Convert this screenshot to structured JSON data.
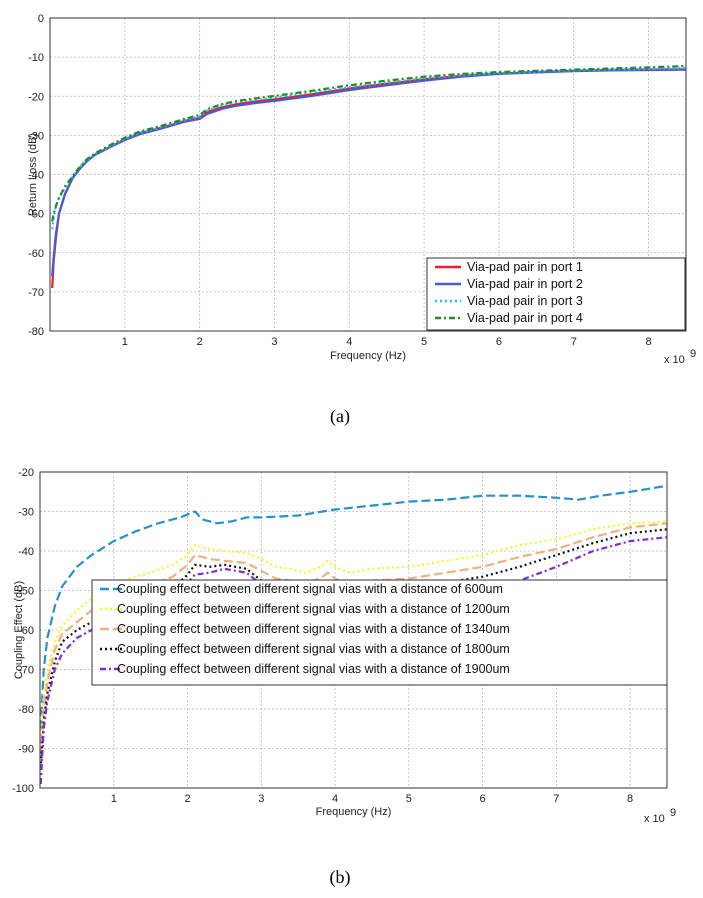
{
  "chart_data": [
    {
      "type": "line",
      "caption": "(a)",
      "xlabel": "Frequency (Hz)",
      "ylabel": "Return Loss (dB)",
      "x_multiplier": "x 10",
      "x_multiplier_exp": "9",
      "xlim": [
        0,
        8.5
      ],
      "ylim": [
        -80,
        0
      ],
      "xticks": [
        1,
        2,
        3,
        4,
        5,
        6,
        7,
        8
      ],
      "yticks": [
        0,
        -10,
        -20,
        -30,
        -40,
        -50,
        -60,
        -70,
        -80
      ],
      "grid": true,
      "legend_position": "bottom-right",
      "series": [
        {
          "name": "Via-pad pair in port 1",
          "color": "#e8202a",
          "dash": "solid",
          "x": [
            0.03,
            0.05,
            0.08,
            0.12,
            0.2,
            0.3,
            0.4,
            0.5,
            0.6,
            0.8,
            1.0,
            1.2,
            1.5,
            1.8,
            2.0,
            2.1,
            2.3,
            2.5,
            2.8,
            3.0,
            3.5,
            4.0,
            4.5,
            5.0,
            5.5,
            6.0,
            6.5,
            7.0,
            7.5,
            8.0,
            8.5
          ],
          "y": [
            -69,
            -62,
            -56,
            -50,
            -45,
            -41,
            -38.5,
            -36.5,
            -35,
            -33,
            -31,
            -29.5,
            -28,
            -26.3,
            -25.5,
            -24,
            -22.8,
            -22,
            -21.2,
            -20.8,
            -19.5,
            -18,
            -16.8,
            -15.7,
            -14.8,
            -14.2,
            -13.8,
            -13.5,
            -13.3,
            -13.2,
            -13.1
          ]
        },
        {
          "name": "Via-pad pair in port 2",
          "color": "#4a55e0",
          "dash": "solid",
          "x": [
            0.03,
            0.05,
            0.08,
            0.12,
            0.2,
            0.3,
            0.4,
            0.5,
            0.6,
            0.8,
            1.0,
            1.2,
            1.5,
            1.8,
            2.0,
            2.1,
            2.3,
            2.5,
            2.8,
            3.0,
            3.5,
            4.0,
            4.5,
            5.0,
            5.5,
            6.0,
            6.5,
            7.0,
            7.5,
            8.0,
            8.5
          ],
          "y": [
            -66,
            -61,
            -55,
            -50,
            -45,
            -41,
            -38.5,
            -36.5,
            -35,
            -33,
            -31.2,
            -29.7,
            -28.2,
            -26.5,
            -25.8,
            -24.5,
            -23.2,
            -22.4,
            -21.6,
            -21.2,
            -19.9,
            -18.4,
            -17.2,
            -16,
            -15,
            -14.3,
            -13.9,
            -13.6,
            -13.4,
            -13.3,
            -13.2
          ]
        },
        {
          "name": "Via-pad pair in port 3",
          "color": "#1fc7c7",
          "dash": "dotted",
          "x": [
            0.03,
            0.05,
            0.08,
            0.12,
            0.2,
            0.3,
            0.4,
            0.5,
            0.6,
            0.8,
            1.0,
            1.2,
            1.5,
            1.8,
            2.0,
            2.1,
            2.3,
            2.5,
            2.8,
            3.0,
            3.5,
            4.0,
            4.5,
            5.0,
            5.5,
            6.0,
            6.5,
            7.0,
            7.5,
            8.0,
            8.5
          ],
          "y": [
            -54,
            -51,
            -48,
            -46,
            -43.5,
            -40.5,
            -38,
            -36.2,
            -34.8,
            -32.8,
            -30.9,
            -29.3,
            -27.8,
            -26,
            -25.2,
            -23.7,
            -22.3,
            -21.5,
            -20.8,
            -20.3,
            -19,
            -17.7,
            -16.5,
            -15.4,
            -14.6,
            -14.1,
            -13.7,
            -13.4,
            -13.2,
            -13,
            -12.8
          ]
        },
        {
          "name": "Via-pad pair in port 4",
          "color": "#1e8c2a",
          "dash": "dashdot",
          "x": [
            0.03,
            0.05,
            0.08,
            0.12,
            0.2,
            0.3,
            0.4,
            0.5,
            0.6,
            0.8,
            1.0,
            1.2,
            1.5,
            1.8,
            2.0,
            2.1,
            2.3,
            2.5,
            2.8,
            3.0,
            3.5,
            4.0,
            4.5,
            5.0,
            5.5,
            6.0,
            6.5,
            7.0,
            7.5,
            8.0,
            8.5
          ],
          "y": [
            -52,
            -50,
            -48,
            -46,
            -43,
            -40.5,
            -38,
            -36,
            -34.6,
            -32.5,
            -30.6,
            -29,
            -27.5,
            -25.8,
            -24.8,
            -23.3,
            -22,
            -21.2,
            -20.4,
            -19.9,
            -18.6,
            -17.2,
            -16,
            -15,
            -14.3,
            -13.8,
            -13.5,
            -13.2,
            -12.9,
            -12.6,
            -12.3
          ]
        }
      ]
    },
    {
      "type": "line",
      "caption": "(b)",
      "xlabel": "Frequency (Hz)",
      "ylabel": "Coupling Effect (dB)",
      "x_multiplier": "x 10",
      "x_multiplier_exp": "9",
      "xlim": [
        0,
        8.5
      ],
      "ylim": [
        -100,
        -20
      ],
      "xticks": [
        1,
        2,
        3,
        4,
        5,
        6,
        7,
        8
      ],
      "yticks": [
        -20,
        -30,
        -40,
        -50,
        -60,
        -70,
        -80,
        -90,
        -100
      ],
      "grid": true,
      "legend_position": "bottom",
      "series": [
        {
          "name": "Coupling effect between different signal vias with a distance of 600um",
          "color": "#2a8fd0",
          "dash": "longdash",
          "x": [
            0.01,
            0.05,
            0.1,
            0.2,
            0.3,
            0.5,
            0.7,
            1.0,
            1.3,
            1.6,
            1.9,
            2.1,
            2.2,
            2.4,
            2.6,
            2.8,
            3.0,
            3.5,
            4.0,
            4.5,
            5.0,
            5.5,
            6.0,
            6.5,
            7.0,
            7.3,
            7.6,
            8.0,
            8.5
          ],
          "y": [
            -85,
            -70,
            -62,
            -54,
            -49,
            -44,
            -41,
            -37.5,
            -35,
            -33,
            -31.5,
            -30,
            -32,
            -33,
            -32.5,
            -31.5,
            -31.5,
            -31,
            -29.5,
            -28.5,
            -27.5,
            -27,
            -26,
            -26,
            -26.5,
            -27,
            -26,
            -25,
            -23.5
          ]
        },
        {
          "name": "Coupling effect between different signal vias with a distance of 1200um",
          "color": "#f5f52a",
          "dash": "dotted",
          "x": [
            0.01,
            0.05,
            0.1,
            0.2,
            0.3,
            0.5,
            0.7,
            0.9,
            1.0,
            1.2,
            1.5,
            1.8,
            2.0,
            2.1,
            2.3,
            2.5,
            2.8,
            3.0,
            3.2,
            3.4,
            3.6,
            3.8,
            3.9,
            4.0,
            4.2,
            4.5,
            5.0,
            5.5,
            6.0,
            6.5,
            7.0,
            7.5,
            8.0,
            8.5
          ],
          "y": [
            -88,
            -76,
            -70,
            -63,
            -59,
            -55,
            -52,
            -50,
            -49,
            -47,
            -45.5,
            -43.5,
            -41,
            -38.5,
            -39.5,
            -40,
            -40.5,
            -42,
            -44,
            -44.5,
            -45.5,
            -44,
            -42.5,
            -44,
            -45.5,
            -44.5,
            -44,
            -42.5,
            -41,
            -38.5,
            -37,
            -34.5,
            -33,
            -32.5
          ]
        },
        {
          "name": "Coupling effect between different signal vias with a distance of 1340um",
          "color": "#f0b080",
          "dash": "longdash",
          "x": [
            0.01,
            0.05,
            0.1,
            0.2,
            0.3,
            0.5,
            0.7,
            0.9,
            1.0,
            1.2,
            1.5,
            1.8,
            2.0,
            2.1,
            2.3,
            2.5,
            2.8,
            3.0,
            3.2,
            3.4,
            3.6,
            3.8,
            3.9,
            4.0,
            4.2,
            4.5,
            5.0,
            5.5,
            6.0,
            6.5,
            7.0,
            7.5,
            8.0,
            8.5
          ],
          "y": [
            -92,
            -80,
            -73,
            -65,
            -61,
            -58,
            -55,
            -53,
            -52,
            -50,
            -48.5,
            -46.5,
            -43.5,
            -41,
            -42,
            -42.5,
            -43,
            -45,
            -47,
            -47.5,
            -48,
            -47,
            -45.5,
            -47,
            -48.5,
            -47.5,
            -47,
            -45.5,
            -44,
            -41.5,
            -39.5,
            -36.5,
            -34,
            -33
          ]
        },
        {
          "name": "Coupling effect between different signal vias with a distance of 1800um",
          "color": "#111111",
          "dash": "dotted",
          "x": [
            0.01,
            0.05,
            0.1,
            0.2,
            0.3,
            0.5,
            0.7,
            0.9,
            1.0,
            1.2,
            1.5,
            1.8,
            2.0,
            2.1,
            2.3,
            2.5,
            2.8,
            3.0,
            3.2,
            3.4,
            3.6,
            3.8,
            3.9,
            4.0,
            4.2,
            4.5,
            5.0,
            5.5,
            6.0,
            6.5,
            7.0,
            7.5,
            8.0,
            8.5
          ],
          "y": [
            -95,
            -83,
            -76,
            -68,
            -63,
            -60,
            -58,
            -56,
            -55,
            -53,
            -51.5,
            -49.5,
            -46,
            -43.5,
            -44,
            -43.5,
            -44.5,
            -47.5,
            -50,
            -49,
            -50,
            -49,
            -47.5,
            -50,
            -51,
            -50,
            -49.5,
            -48,
            -46.5,
            -44,
            -41,
            -38,
            -35.5,
            -34.5
          ]
        },
        {
          "name": "Coupling effect between different signal vias with a distance of 1900um",
          "color": "#7a2fd8",
          "dash": "dashdot",
          "x": [
            0.01,
            0.05,
            0.1,
            0.2,
            0.3,
            0.5,
            0.7,
            0.9,
            1.0,
            1.2,
            1.5,
            1.8,
            2.0,
            2.1,
            2.3,
            2.5,
            2.8,
            3.0,
            3.2,
            3.4,
            3.6,
            3.8,
            3.9,
            4.0,
            4.2,
            4.5,
            5.0,
            5.5,
            6.0,
            6.5,
            7.0,
            7.5,
            8.0,
            8.5
          ],
          "y": [
            -99,
            -85,
            -78,
            -70,
            -66,
            -62,
            -60,
            -58,
            -57,
            -55.5,
            -54,
            -52,
            -48,
            -46,
            -45.5,
            -44.5,
            -45.5,
            -48.5,
            -51,
            -50,
            -51.5,
            -51.5,
            -50,
            -54,
            -53,
            -52.5,
            -52,
            -50,
            -49,
            -47.5,
            -44,
            -40,
            -37.5,
            -36.5
          ]
        }
      ]
    }
  ]
}
